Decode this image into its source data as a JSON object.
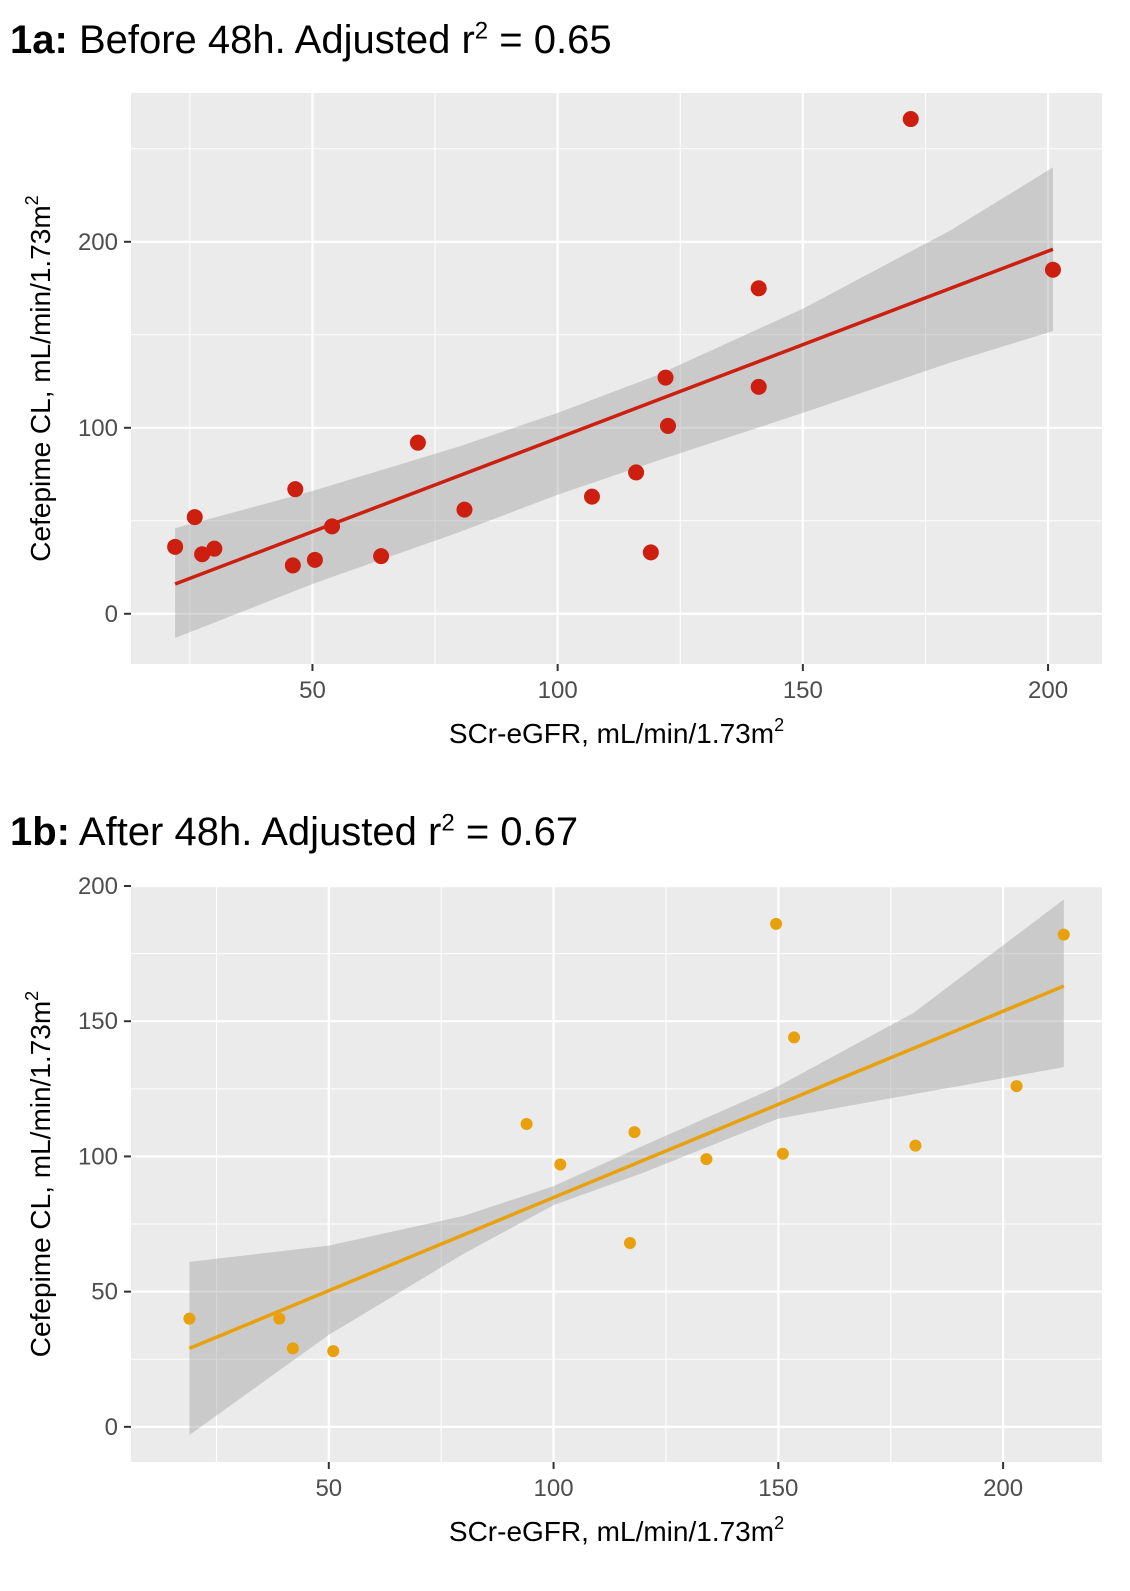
{
  "chart_data": [
    {
      "type": "scatter",
      "title_bold": "1a:",
      "title_rest": "Before 48h. Adjusted r",
      "title_sup": "2",
      "title_end": " = 0.65",
      "xlabel": "SCr-eGFR, mL/min/1.73m",
      "xlabel_sup": "2",
      "ylabel": "Cefepime CL, mL/min/1.73m",
      "ylabel_sup": "2",
      "xlim": [
        13,
        211
      ],
      "ylim": [
        -27,
        280
      ],
      "x_ticks": [
        50,
        100,
        150,
        200
      ],
      "y_ticks": [
        0,
        100,
        200
      ],
      "grid": true,
      "color": "#cc1f0f",
      "band_color": "#c8c8c8",
      "points": [
        [
          22,
          36
        ],
        [
          26,
          52
        ],
        [
          27.5,
          32
        ],
        [
          30,
          35
        ],
        [
          46,
          26
        ],
        [
          46.5,
          67
        ],
        [
          50.5,
          29
        ],
        [
          54,
          47
        ],
        [
          64,
          31
        ],
        [
          71.5,
          92
        ],
        [
          81,
          56
        ],
        [
          107,
          63
        ],
        [
          116,
          76
        ],
        [
          119,
          33
        ],
        [
          122,
          127
        ],
        [
          122.5,
          101
        ],
        [
          141,
          175
        ],
        [
          141,
          122
        ],
        [
          172,
          266
        ],
        [
          201,
          185
        ]
      ],
      "fit": {
        "x": [
          22,
          201
        ],
        "y": [
          16,
          196
        ]
      },
      "ci_band": {
        "x": [
          22,
          50,
          80,
          100,
          120,
          150,
          180,
          201
        ],
        "upper": [
          46,
          66,
          90,
          108,
          128,
          164,
          206,
          240
        ],
        "lower": [
          -13,
          16,
          44,
          64,
          82,
          108,
          135,
          152
        ]
      }
    },
    {
      "type": "scatter",
      "title_bold": "1b:",
      "title_rest": "After 48h. Adjusted r",
      "title_sup": "2",
      "title_end": " = 0.67",
      "xlabel": "SCr-eGFR, mL/min/1.73m",
      "xlabel_sup": "2",
      "ylabel": "Cefepime CL, mL/min/1.73m",
      "ylabel_sup": "2",
      "xlim": [
        6,
        222
      ],
      "ylim": [
        -13,
        200
      ],
      "x_ticks": [
        50,
        100,
        150,
        200
      ],
      "y_ticks": [
        0,
        50,
        100,
        150,
        200
      ],
      "grid": true,
      "color": "#e8a00c",
      "band_color": "#c8c8c8",
      "points": [
        [
          19,
          40
        ],
        [
          39,
          40
        ],
        [
          42,
          29
        ],
        [
          51,
          28
        ],
        [
          94,
          112
        ],
        [
          101.5,
          97
        ],
        [
          117,
          68
        ],
        [
          118,
          109
        ],
        [
          134,
          99
        ],
        [
          149.5,
          186
        ],
        [
          151,
          101
        ],
        [
          153.5,
          144
        ],
        [
          180.5,
          104
        ],
        [
          203,
          126
        ],
        [
          213.5,
          182
        ]
      ],
      "fit": {
        "x": [
          19,
          213.5
        ],
        "y": [
          29,
          163
        ]
      },
      "ci_band": {
        "x": [
          19,
          50,
          80,
          100,
          120,
          150,
          180,
          213.5
        ],
        "upper": [
          61,
          67,
          78,
          89,
          104,
          126,
          153,
          195
        ],
        "lower": [
          -3,
          34,
          64,
          82,
          94,
          114,
          123,
          133
        ]
      }
    }
  ]
}
